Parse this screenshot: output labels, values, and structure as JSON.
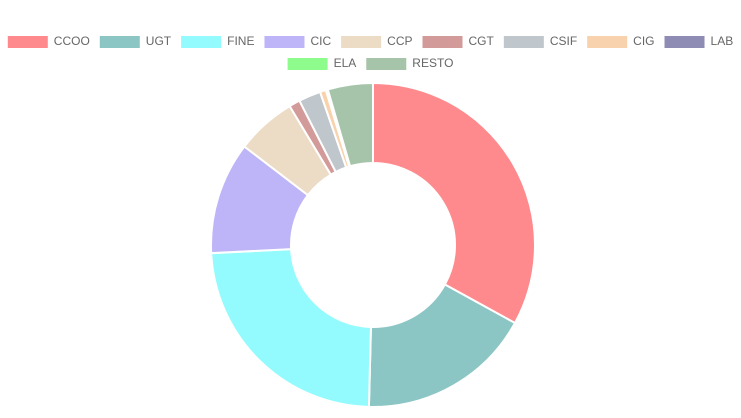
{
  "chart_data": {
    "type": "doughnut",
    "categories": [
      "CCOO",
      "UGT",
      "FINE",
      "CIC",
      "CCP",
      "CGT",
      "CSIF",
      "CIG",
      "LAB",
      "ELA",
      "RESTO"
    ],
    "values": [
      33.0,
      17.4,
      23.8,
      11.2,
      6.0,
      1.1,
      2.2,
      0.6,
      0.1,
      0.1,
      4.5
    ],
    "colors": [
      "#ff8a8d",
      "#8bc6c4",
      "#93fbfd",
      "#bdb5f7",
      "#ecdbc5",
      "#d39a9a",
      "#bfc6cc",
      "#f8d2ad",
      "#8e8cb5",
      "#8efc8c",
      "#a5c4a9"
    ],
    "legend": "top"
  }
}
